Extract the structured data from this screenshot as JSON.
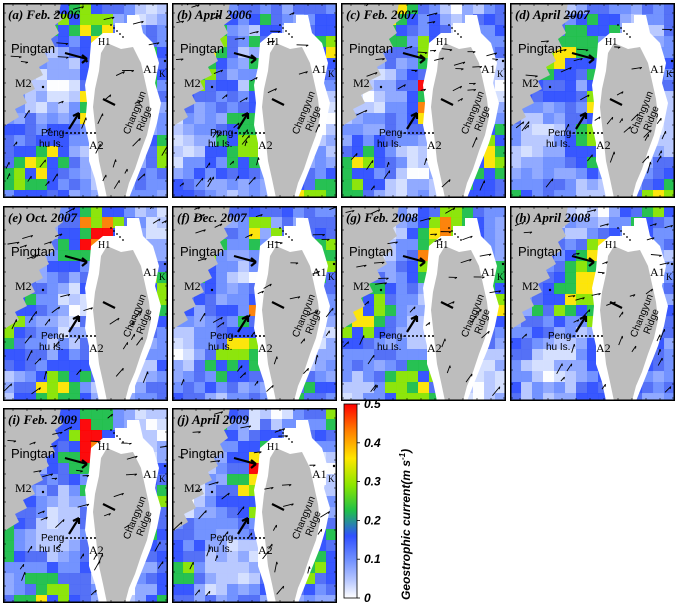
{
  "panels": [
    {
      "label": "(a) Feb. 2006",
      "seed": 11
    },
    {
      "label": "(b) April 2006",
      "seed": 23
    },
    {
      "label": "(c) Feb. 2007",
      "seed": 37
    },
    {
      "label": "(d) April 2007",
      "seed": 41
    },
    {
      "label": "(e) Oct. 2007",
      "seed": 53
    },
    {
      "label": "(f) Dec. 2007",
      "seed": 67
    },
    {
      "label": "(g) Feb. 2008",
      "seed": 71
    },
    {
      "label": "(h) April 2008",
      "seed": 83
    },
    {
      "label": "(i) Feb. 2009",
      "seed": 97
    },
    {
      "label": "(j) April 2009",
      "seed": 101
    }
  ],
  "map_labels": {
    "pingtan": "Pingtan",
    "h1": "H1",
    "m2": "M2",
    "a1": "A1",
    "k1": "K1",
    "a2": "A2",
    "penghu_line1": "Peng-",
    "penghu_line2": "hu Is.",
    "changyun_line1": "Changyun",
    "changyun_line2": "Ridge"
  },
  "colorbar": {
    "title": "Geostrophic current(m s",
    "title_superscript": "-1",
    "title_close": ")",
    "ticks": [
      "0.5",
      "0.4",
      "0.3",
      "0.2",
      "0.1",
      "0"
    ],
    "colors": [
      "#ff0000",
      "#ff8000",
      "#ffe600",
      "#8ae600",
      "#1fc04a",
      "#3050ff",
      "#6f8fff",
      "#b8c8ff",
      "#ffffff"
    ]
  }
}
